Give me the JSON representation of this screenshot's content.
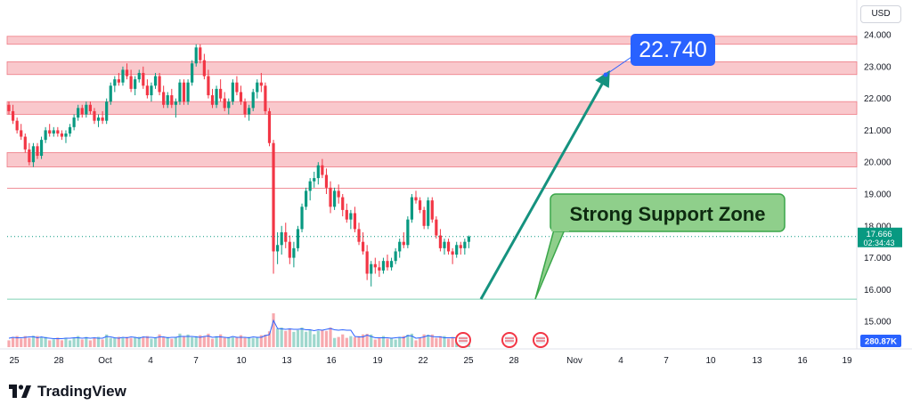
{
  "header": {
    "currency": "USD"
  },
  "branding": {
    "name": "TradingView"
  },
  "chart_data": {
    "type": "candlestick",
    "price_axis": {
      "ticks": [
        "24.000",
        "23.000",
        "22.000",
        "21.000",
        "20.000",
        "19.000",
        "18.000",
        "17.000",
        "16.000",
        "15.000"
      ],
      "ylim": [
        14.6,
        24.5
      ]
    },
    "time_axis": {
      "ticks": [
        "25",
        "28",
        "Oct",
        "4",
        "7",
        "10",
        "13",
        "16",
        "19",
        "22",
        "25",
        "28",
        "Nov",
        "4",
        "7",
        "10",
        "13",
        "16",
        "19"
      ]
    },
    "last_price": {
      "value": "17.666",
      "countdown": "02:34:43"
    },
    "volume_label": "280.87K",
    "zones": [
      {
        "from": 23.7,
        "to": 23.95
      },
      {
        "from": 22.75,
        "to": 23.15
      },
      {
        "from": 21.5,
        "to": 21.9
      },
      {
        "from": 19.85,
        "to": 20.3
      }
    ],
    "resistance_line": 19.18,
    "support_line": 15.7,
    "annotations": {
      "target": "22.740",
      "support_label": "Strong Support Zone"
    },
    "candles": [
      [
        21.8,
        21.9,
        21.5,
        21.6
      ],
      [
        21.6,
        21.8,
        21.2,
        21.3
      ],
      [
        21.3,
        21.4,
        20.9,
        21.0
      ],
      [
        21.0,
        21.2,
        20.7,
        20.8
      ],
      [
        20.8,
        20.9,
        20.3,
        20.4
      ],
      [
        20.4,
        20.6,
        19.9,
        20.0
      ],
      [
        20.0,
        20.6,
        19.85,
        20.5
      ],
      [
        20.5,
        20.6,
        20.1,
        20.2
      ],
      [
        20.2,
        20.8,
        20.1,
        20.7
      ],
      [
        20.7,
        21.1,
        20.6,
        21.0
      ],
      [
        21.0,
        21.2,
        20.8,
        20.9
      ],
      [
        20.9,
        21.1,
        20.8,
        21.0
      ],
      [
        21.0,
        21.1,
        20.8,
        20.9
      ],
      [
        20.9,
        21.0,
        20.7,
        20.8
      ],
      [
        20.8,
        21.0,
        20.6,
        20.9
      ],
      [
        20.9,
        21.2,
        20.8,
        21.1
      ],
      [
        21.1,
        21.5,
        21.0,
        21.4
      ],
      [
        21.4,
        21.8,
        21.3,
        21.7
      ],
      [
        21.7,
        21.8,
        21.4,
        21.5
      ],
      [
        21.5,
        21.9,
        21.4,
        21.8
      ],
      [
        21.8,
        21.9,
        21.5,
        21.6
      ],
      [
        21.6,
        21.7,
        21.2,
        21.3
      ],
      [
        21.3,
        21.5,
        21.1,
        21.4
      ],
      [
        21.4,
        21.6,
        21.2,
        21.3
      ],
      [
        21.3,
        22.0,
        21.2,
        21.9
      ],
      [
        21.9,
        22.5,
        21.8,
        22.4
      ],
      [
        22.4,
        22.7,
        22.2,
        22.6
      ],
      [
        22.6,
        22.8,
        22.4,
        22.5
      ],
      [
        22.5,
        23.0,
        22.4,
        22.9
      ],
      [
        22.9,
        23.1,
        22.6,
        22.7
      ],
      [
        22.7,
        22.9,
        22.2,
        22.3
      ],
      [
        22.3,
        22.7,
        22.1,
        22.6
      ],
      [
        22.6,
        22.9,
        22.5,
        22.8
      ],
      [
        22.8,
        23.0,
        22.3,
        22.4
      ],
      [
        22.4,
        22.6,
        22.0,
        22.1
      ],
      [
        22.1,
        22.5,
        21.9,
        22.4
      ],
      [
        22.4,
        22.8,
        22.3,
        22.7
      ],
      [
        22.7,
        22.8,
        22.1,
        22.2
      ],
      [
        22.2,
        22.4,
        21.7,
        21.8
      ],
      [
        21.8,
        22.2,
        21.7,
        22.1
      ],
      [
        22.1,
        22.3,
        21.7,
        21.8
      ],
      [
        21.8,
        22.0,
        21.4,
        21.9
      ],
      [
        21.9,
        22.6,
        21.8,
        22.5
      ],
      [
        22.5,
        22.6,
        21.8,
        21.9
      ],
      [
        21.9,
        22.6,
        21.8,
        22.5
      ],
      [
        22.5,
        23.2,
        22.4,
        23.1
      ],
      [
        23.1,
        23.7,
        23.0,
        23.6
      ],
      [
        23.6,
        23.7,
        23.1,
        23.2
      ],
      [
        23.2,
        23.4,
        22.6,
        22.7
      ],
      [
        22.7,
        22.9,
        22.0,
        22.1
      ],
      [
        22.1,
        22.3,
        21.7,
        21.8
      ],
      [
        21.8,
        22.4,
        21.7,
        22.3
      ],
      [
        22.3,
        22.6,
        21.9,
        22.0
      ],
      [
        22.0,
        22.2,
        21.6,
        21.7
      ],
      [
        21.7,
        22.0,
        21.5,
        21.9
      ],
      [
        21.9,
        22.6,
        21.8,
        22.5
      ],
      [
        22.5,
        22.7,
        22.1,
        22.2
      ],
      [
        22.2,
        22.4,
        21.8,
        21.9
      ],
      [
        21.9,
        22.0,
        21.4,
        21.5
      ],
      [
        21.5,
        21.8,
        21.3,
        21.7
      ],
      [
        21.7,
        22.3,
        21.6,
        22.2
      ],
      [
        22.2,
        22.6,
        22.0,
        22.5
      ],
      [
        22.5,
        22.8,
        22.2,
        22.4
      ],
      [
        22.4,
        22.5,
        21.5,
        21.6
      ],
      [
        21.6,
        21.7,
        20.5,
        20.6
      ],
      [
        20.6,
        20.7,
        16.5,
        17.2
      ],
      [
        17.2,
        17.8,
        16.8,
        17.4
      ],
      [
        17.4,
        18.0,
        17.1,
        17.8
      ],
      [
        17.8,
        18.1,
        17.3,
        17.5
      ],
      [
        17.5,
        17.7,
        16.8,
        17.0
      ],
      [
        17.0,
        17.5,
        16.7,
        17.3
      ],
      [
        17.3,
        18.0,
        17.2,
        17.9
      ],
      [
        17.9,
        18.7,
        17.8,
        18.6
      ],
      [
        18.6,
        19.2,
        18.5,
        19.1
      ],
      [
        19.1,
        19.5,
        18.8,
        19.4
      ],
      [
        19.4,
        19.7,
        19.2,
        19.5
      ],
      [
        19.5,
        20.0,
        19.3,
        19.9
      ],
      [
        19.9,
        20.1,
        19.5,
        19.6
      ],
      [
        19.6,
        19.8,
        19.0,
        19.2
      ],
      [
        19.2,
        19.4,
        18.4,
        18.6
      ],
      [
        18.6,
        19.2,
        18.5,
        19.1
      ],
      [
        19.1,
        19.3,
        18.7,
        18.9
      ],
      [
        18.9,
        19.0,
        18.3,
        18.5
      ],
      [
        18.5,
        18.7,
        18.1,
        18.2
      ],
      [
        18.2,
        18.5,
        17.9,
        18.4
      ],
      [
        18.4,
        18.6,
        17.8,
        17.9
      ],
      [
        17.9,
        18.1,
        17.4,
        17.5
      ],
      [
        17.5,
        17.8,
        17.1,
        17.2
      ],
      [
        17.2,
        17.4,
        16.3,
        16.5
      ],
      [
        16.5,
        16.9,
        16.1,
        16.8
      ],
      [
        16.8,
        17.0,
        16.5,
        16.7
      ],
      [
        16.7,
        16.9,
        16.4,
        16.6
      ],
      [
        16.6,
        17.0,
        16.5,
        16.9
      ],
      [
        16.9,
        17.1,
        16.6,
        16.7
      ],
      [
        16.7,
        17.0,
        16.6,
        16.9
      ],
      [
        16.9,
        17.3,
        16.8,
        17.2
      ],
      [
        17.2,
        17.6,
        17.0,
        17.5
      ],
      [
        17.5,
        17.8,
        17.3,
        17.4
      ],
      [
        17.4,
        18.3,
        17.3,
        18.2
      ],
      [
        18.2,
        19.0,
        18.1,
        18.9
      ],
      [
        18.9,
        19.1,
        18.7,
        18.8
      ],
      [
        18.8,
        18.9,
        18.4,
        18.5
      ],
      [
        18.5,
        18.6,
        17.9,
        18.0
      ],
      [
        18.0,
        18.9,
        17.9,
        18.8
      ],
      [
        18.8,
        18.9,
        18.1,
        18.2
      ],
      [
        18.2,
        18.3,
        17.6,
        17.7
      ],
      [
        17.7,
        17.9,
        17.2,
        17.3
      ],
      [
        17.3,
        17.6,
        17.1,
        17.5
      ],
      [
        17.5,
        17.6,
        17.1,
        17.2
      ],
      [
        17.2,
        17.3,
        16.8,
        17.1
      ],
      [
        17.1,
        17.5,
        17.0,
        17.4
      ],
      [
        17.4,
        17.5,
        17.1,
        17.3
      ],
      [
        17.3,
        17.6,
        17.1,
        17.5
      ],
      [
        17.5,
        17.7,
        17.3,
        17.666
      ]
    ]
  }
}
